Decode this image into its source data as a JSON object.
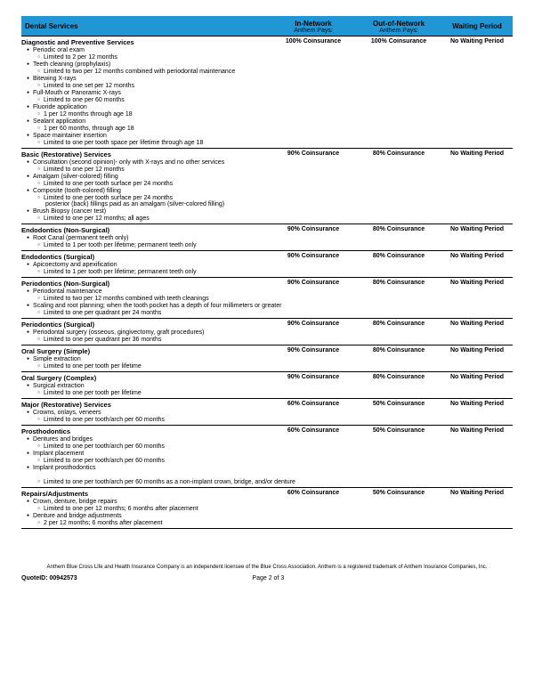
{
  "header": {
    "services_label": "Dental Services",
    "in_network": {
      "top": "In-Network",
      "bot": "Anthem Pays:"
    },
    "out_network": {
      "top": "Out-of-Network",
      "bot": "Anthem Pays:"
    },
    "waiting": "Waiting Period"
  },
  "colors": {
    "header_bg": "#2196d4",
    "rule": "#000000",
    "text": "#000000"
  },
  "sections": [
    {
      "title": "Diagnostic and Preventive Services",
      "in": "100% Coinsurance",
      "out": "100% Coinsurance",
      "wait": "No Waiting Period",
      "lines": [
        {
          "t": "item",
          "text": "Periodic oral exam"
        },
        {
          "t": "sub",
          "text": "Limited to 2 per 12 months"
        },
        {
          "t": "item",
          "text": "Teeth cleaning (prophylaxis)"
        },
        {
          "t": "sub",
          "text": "Limited to two per 12 months combined with periodontal maintenance"
        },
        {
          "t": "item",
          "text": "Bitewing X-rays"
        },
        {
          "t": "sub",
          "text": "Limited to one set per 12 months"
        },
        {
          "t": "item",
          "text": "Full-Mouth or Panoramic X-rays"
        },
        {
          "t": "sub",
          "text": "Limited to one per 60 months"
        },
        {
          "t": "item",
          "text": "Fluoride application"
        },
        {
          "t": "sub",
          "text": "1 per 12 months through age 18"
        },
        {
          "t": "item",
          "text": "Sealant application"
        },
        {
          "t": "sub",
          "text": "1 per 60 months,  through age 18"
        },
        {
          "t": "item",
          "text": "Space maintainer insertion"
        },
        {
          "t": "sub",
          "text": "Limited to one per tooth space per lifetime through age 18"
        }
      ]
    },
    {
      "title": "Basic (Restorative) Services",
      "in": "90% Coinsurance",
      "out": "80% Coinsurance",
      "wait": "No Waiting Period",
      "lines": [
        {
          "t": "item",
          "text": "Consultation (second opinion)- only with X-rays and no other services"
        },
        {
          "t": "sub",
          "text": "Limited to one per 12 months"
        },
        {
          "t": "item",
          "text": "Amalgam (silver-colored) filling"
        },
        {
          "t": "sub",
          "text": "Limited to one per tooth surface per 24 months"
        },
        {
          "t": "item",
          "text": "Composite (tooth-colored) filling"
        },
        {
          "t": "sub",
          "text": "Limited to one per tooth surface per 24 months"
        },
        {
          "t": "cont",
          "text": "posterior (back) fillings paid as an amalgam (silver-colored filling)"
        },
        {
          "t": "item",
          "text": "Brush Biopsy (cancer test)"
        },
        {
          "t": "sub",
          "text": "Limited to one per 12 months; all ages"
        }
      ]
    },
    {
      "title": "Endodontics (Non-Surgical)",
      "in": "90% Coinsurance",
      "out": "80% Coinsurance",
      "wait": "No Waiting Period",
      "lines": [
        {
          "t": "item",
          "text": "Root Canal (permanent teeth only)"
        },
        {
          "t": "sub",
          "text": "Limited to 1 per tooth per lifetime; permanent teeth only"
        }
      ]
    },
    {
      "title": "Endodontics (Surgical)",
      "in": "90% Coinsurance",
      "out": "80% Coinsurance",
      "wait": "No Waiting Period",
      "lines": [
        {
          "t": "item",
          "text": "Apicoectomy and apexification"
        },
        {
          "t": "sub",
          "text": "Limited to 1 per tooth per lifetime; permanent teeth only"
        }
      ]
    },
    {
      "title": "Periodontics (Non-Surgical)",
      "in": "90% Coinsurance",
      "out": "80% Coinsurance",
      "wait": "No Waiting Period",
      "lines": [
        {
          "t": "item",
          "text": "Periodontal maintenance"
        },
        {
          "t": "sub",
          "text": "Limited to two per 12 months combined with teeth cleanings"
        },
        {
          "t": "item",
          "text": "Scaling and root planning; when the tooth pocket has a depth of four millimeters or greater"
        },
        {
          "t": "sub",
          "text": "Limited to one per quadrant per 24 months"
        }
      ]
    },
    {
      "title": "Periodontics (Surgical)",
      "in": "90% Coinsurance",
      "out": "80% Coinsurance",
      "wait": "No Waiting Period",
      "lines": [
        {
          "t": "item",
          "text": "Periodontal surgery (osseous, gingivectomy, graft procedures)"
        },
        {
          "t": "sub",
          "text": "Limited to one per quadrant per 36 months"
        }
      ]
    },
    {
      "title": "Oral Surgery (Simple)",
      "in": "90% Coinsurance",
      "out": "80% Coinsurance",
      "wait": "No Waiting Period",
      "lines": [
        {
          "t": "item",
          "text": "Simple extraction"
        },
        {
          "t": "sub",
          "text": "Limited to one per tooth per lifetime"
        }
      ]
    },
    {
      "title": "Oral Surgery (Complex)",
      "in": "90% Coinsurance",
      "out": "80% Coinsurance",
      "wait": "No Waiting Period",
      "lines": [
        {
          "t": "item",
          "text": "Surgical extraction"
        },
        {
          "t": "sub",
          "text": "Limited to one per tooth per lifetime"
        }
      ]
    },
    {
      "title": "Major (Restorative) Services",
      "in": "60% Coinsurance",
      "out": "50% Coinsurance",
      "wait": "No Waiting Period",
      "lines": [
        {
          "t": "item",
          "text": "Crowns, onlays, veneers"
        },
        {
          "t": "sub",
          "text": "Limited to one per tooth/arch per 60 months"
        }
      ]
    },
    {
      "title": "Prosthodontics",
      "in": "60% Coinsurance",
      "out": "50% Coinsurance",
      "wait": "No Waiting Period",
      "lines": [
        {
          "t": "item",
          "text": "Dentures and bridges"
        },
        {
          "t": "sub",
          "text": "Limited to one per tooth/arch per 60 months"
        },
        {
          "t": "item",
          "text": "Implant placement"
        },
        {
          "t": "sub",
          "text": "Limited to one per tooth/arch per 60 months"
        },
        {
          "t": "item",
          "text": "Implant prosthodontics"
        },
        {
          "t": "gap",
          "text": ""
        },
        {
          "t": "sub",
          "text": "Limited to one per tooth/arch per 60 months as a non-implant crown, bridge, and/or denture"
        }
      ]
    },
    {
      "title": "Repairs/Adjustments",
      "in": "60% Coinsurance",
      "out": "50% Coinsurance",
      "wait": "No Waiting Period",
      "lines": [
        {
          "t": "item",
          "text": "Crown, denture, bridge repairs"
        },
        {
          "t": "sub",
          "text": "Limited to one per 12 months; 6 months after placement"
        },
        {
          "t": "item",
          "text": "Denture and bridge adjustments"
        },
        {
          "t": "sub",
          "text": "2 per 12 months; 6 months after placement"
        }
      ]
    }
  ],
  "footer": {
    "disclaimer": "Anthem Blue Cross Life and Health Insurance Company is an independent licensee of the Blue Cross Association. Anthem is a registered trademark of Anthem Insurance Companies, Inc.",
    "quote_label": "QuoteID: 00942573",
    "page": "Page 2 of 3"
  }
}
